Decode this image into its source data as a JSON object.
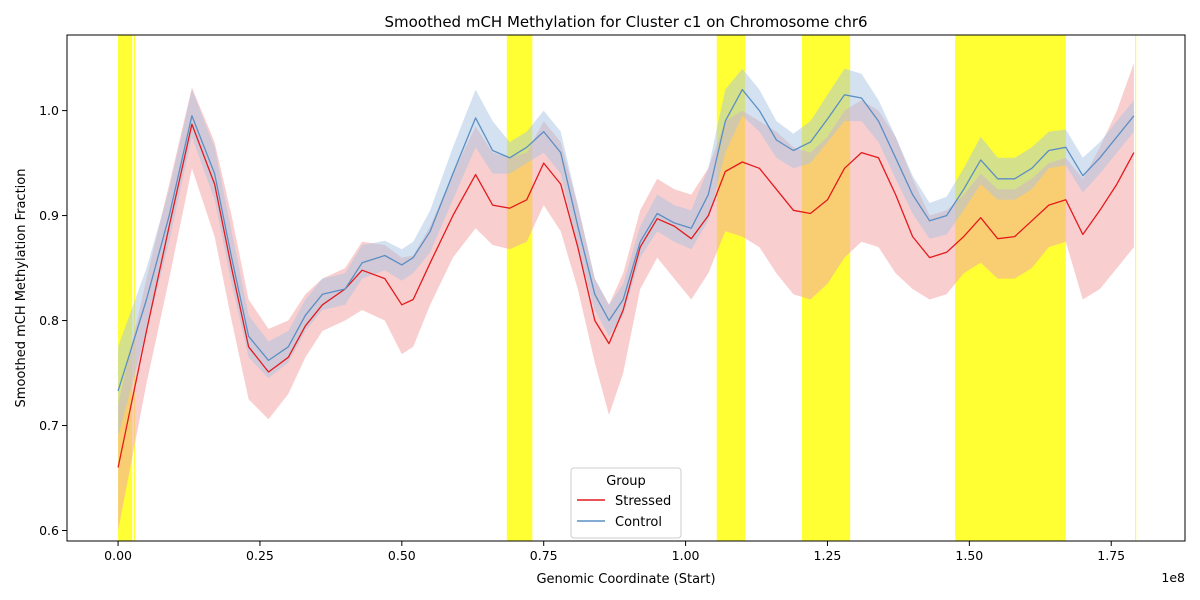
{
  "chart_data": {
    "type": "line",
    "title": "Smoothed mCH Methylation for Cluster c1 on Chromosome chr6",
    "xlabel": "Genomic Coordinate (Start)",
    "ylabel": "Smoothed mCH Methylation Fraction",
    "x_offset_label": "1e8",
    "xlim": [
      -9000000,
      188000000
    ],
    "ylim": [
      0.59,
      1.072
    ],
    "xticks": [
      0,
      25000000,
      50000000,
      75000000,
      100000000,
      125000000,
      150000000,
      175000000
    ],
    "xtick_labels": [
      "0.00",
      "0.25",
      "0.50",
      "0.75",
      "1.00",
      "1.25",
      "1.50",
      "1.75"
    ],
    "yticks": [
      0.6,
      0.7,
      0.8,
      0.9,
      1.0
    ],
    "ytick_labels": [
      "0.6",
      "0.7",
      "0.8",
      "0.9",
      "1.0"
    ],
    "grid": false,
    "legend": {
      "title": "Group",
      "placement": "lower center"
    },
    "highlight_color": "#ffff00",
    "highlight_regions": [
      [
        0,
        2500000
      ],
      [
        2800000,
        3000000
      ],
      [
        68500000,
        73000000
      ],
      [
        105500000,
        110500000
      ],
      [
        120500000,
        129000000
      ],
      [
        147500000,
        167000000
      ],
      [
        179200000,
        179400000
      ]
    ],
    "series": [
      {
        "name": "Stressed",
        "color": "#e41a1c",
        "band_color": "#f4a6a7",
        "x": [
          0,
          5000000,
          9000000,
          13000000,
          17000000,
          20000000,
          23000000,
          26500000,
          30000000,
          33000000,
          36000000,
          40000000,
          43000000,
          47000000,
          50000000,
          52000000,
          55000000,
          59000000,
          63000000,
          66000000,
          69000000,
          72000000,
          75000000,
          78000000,
          81000000,
          84000000,
          86500000,
          89000000,
          92000000,
          95000000,
          98000000,
          101000000,
          104000000,
          107000000,
          110000000,
          113000000,
          116000000,
          119000000,
          122000000,
          125000000,
          128000000,
          131000000,
          134000000,
          137000000,
          140000000,
          143000000,
          146000000,
          149000000,
          152000000,
          155000000,
          158000000,
          161000000,
          164000000,
          167000000,
          170000000,
          173000000,
          176000000,
          179000000
        ],
        "values": [
          0.66,
          0.79,
          0.89,
          0.987,
          0.93,
          0.85,
          0.775,
          0.751,
          0.765,
          0.795,
          0.815,
          0.83,
          0.848,
          0.84,
          0.815,
          0.82,
          0.855,
          0.9,
          0.939,
          0.91,
          0.907,
          0.915,
          0.95,
          0.93,
          0.87,
          0.8,
          0.778,
          0.81,
          0.87,
          0.897,
          0.89,
          0.878,
          0.9,
          0.942,
          0.951,
          0.945,
          0.925,
          0.905,
          0.902,
          0.915,
          0.945,
          0.96,
          0.955,
          0.92,
          0.88,
          0.86,
          0.865,
          0.88,
          0.898,
          0.878,
          0.88,
          0.895,
          0.91,
          0.915,
          0.882,
          0.905,
          0.93,
          0.96
        ],
        "lower": [
          0.6,
          0.74,
          0.84,
          0.945,
          0.88,
          0.8,
          0.725,
          0.706,
          0.73,
          0.765,
          0.79,
          0.8,
          0.81,
          0.8,
          0.768,
          0.775,
          0.815,
          0.86,
          0.888,
          0.872,
          0.868,
          0.875,
          0.91,
          0.885,
          0.83,
          0.76,
          0.71,
          0.75,
          0.83,
          0.86,
          0.84,
          0.82,
          0.845,
          0.885,
          0.88,
          0.87,
          0.845,
          0.825,
          0.82,
          0.835,
          0.86,
          0.875,
          0.87,
          0.845,
          0.83,
          0.82,
          0.825,
          0.845,
          0.855,
          0.84,
          0.84,
          0.85,
          0.87,
          0.875,
          0.82,
          0.83,
          0.85,
          0.87
        ],
        "upper": [
          0.72,
          0.84,
          0.93,
          1.022,
          0.97,
          0.9,
          0.82,
          0.792,
          0.8,
          0.825,
          0.84,
          0.85,
          0.875,
          0.872,
          0.86,
          0.862,
          0.89,
          0.94,
          0.985,
          0.96,
          0.955,
          0.96,
          0.99,
          0.97,
          0.91,
          0.84,
          0.815,
          0.845,
          0.905,
          0.935,
          0.925,
          0.92,
          0.945,
          0.99,
          1.0,
          0.99,
          0.98,
          0.965,
          0.96,
          0.975,
          1.0,
          1.01,
          1.0,
          0.975,
          0.935,
          0.9,
          0.905,
          0.92,
          0.94,
          0.925,
          0.925,
          0.935,
          0.95,
          0.955,
          0.935,
          0.965,
          1.0,
          1.045
        ]
      },
      {
        "name": "Control",
        "color": "#5b8fc4",
        "band_color": "#a9c4e2",
        "x": [
          0,
          5000000,
          9000000,
          13000000,
          17000000,
          20000000,
          23000000,
          26500000,
          30000000,
          33000000,
          36000000,
          40000000,
          43000000,
          47000000,
          50000000,
          52000000,
          55000000,
          59000000,
          63000000,
          66000000,
          69000000,
          72000000,
          75000000,
          78000000,
          81000000,
          84000000,
          86500000,
          89000000,
          92000000,
          95000000,
          98000000,
          101000000,
          104000000,
          107000000,
          110000000,
          113000000,
          116000000,
          119000000,
          122000000,
          125000000,
          128000000,
          131000000,
          134000000,
          137000000,
          140000000,
          143000000,
          146000000,
          149000000,
          152000000,
          155000000,
          158000000,
          161000000,
          164000000,
          167000000,
          170000000,
          173000000,
          176000000,
          179000000
        ],
        "values": [
          0.733,
          0.82,
          0.9,
          0.995,
          0.94,
          0.86,
          0.785,
          0.762,
          0.775,
          0.805,
          0.825,
          0.83,
          0.855,
          0.862,
          0.853,
          0.86,
          0.885,
          0.94,
          0.993,
          0.962,
          0.955,
          0.965,
          0.98,
          0.96,
          0.89,
          0.825,
          0.8,
          0.82,
          0.875,
          0.902,
          0.893,
          0.888,
          0.92,
          0.99,
          1.02,
          1.0,
          0.972,
          0.962,
          0.97,
          0.992,
          1.015,
          1.012,
          0.99,
          0.955,
          0.92,
          0.895,
          0.9,
          0.925,
          0.953,
          0.935,
          0.935,
          0.945,
          0.962,
          0.965,
          0.938,
          0.955,
          0.975,
          0.995
        ],
        "lower": [
          0.69,
          0.79,
          0.875,
          0.975,
          0.915,
          0.835,
          0.765,
          0.745,
          0.76,
          0.79,
          0.81,
          0.815,
          0.84,
          0.848,
          0.838,
          0.845,
          0.865,
          0.915,
          0.965,
          0.94,
          0.94,
          0.95,
          0.96,
          0.94,
          0.87,
          0.81,
          0.785,
          0.805,
          0.86,
          0.885,
          0.875,
          0.868,
          0.895,
          0.96,
          0.995,
          0.98,
          0.955,
          0.945,
          0.95,
          0.97,
          0.99,
          0.99,
          0.97,
          0.935,
          0.902,
          0.878,
          0.882,
          0.905,
          0.93,
          0.915,
          0.915,
          0.925,
          0.945,
          0.948,
          0.922,
          0.94,
          0.96,
          0.98
        ],
        "upper": [
          0.775,
          0.85,
          0.925,
          1.02,
          0.965,
          0.885,
          0.805,
          0.78,
          0.79,
          0.82,
          0.84,
          0.845,
          0.872,
          0.876,
          0.868,
          0.875,
          0.905,
          0.965,
          1.02,
          0.99,
          0.97,
          0.98,
          1.0,
          0.98,
          0.91,
          0.84,
          0.815,
          0.835,
          0.89,
          0.92,
          0.91,
          0.905,
          0.945,
          1.02,
          1.04,
          1.02,
          0.99,
          0.978,
          0.99,
          1.015,
          1.04,
          1.035,
          1.01,
          0.975,
          0.938,
          0.912,
          0.918,
          0.945,
          0.975,
          0.955,
          0.955,
          0.965,
          0.98,
          0.982,
          0.955,
          0.97,
          0.99,
          1.01
        ]
      }
    ]
  }
}
